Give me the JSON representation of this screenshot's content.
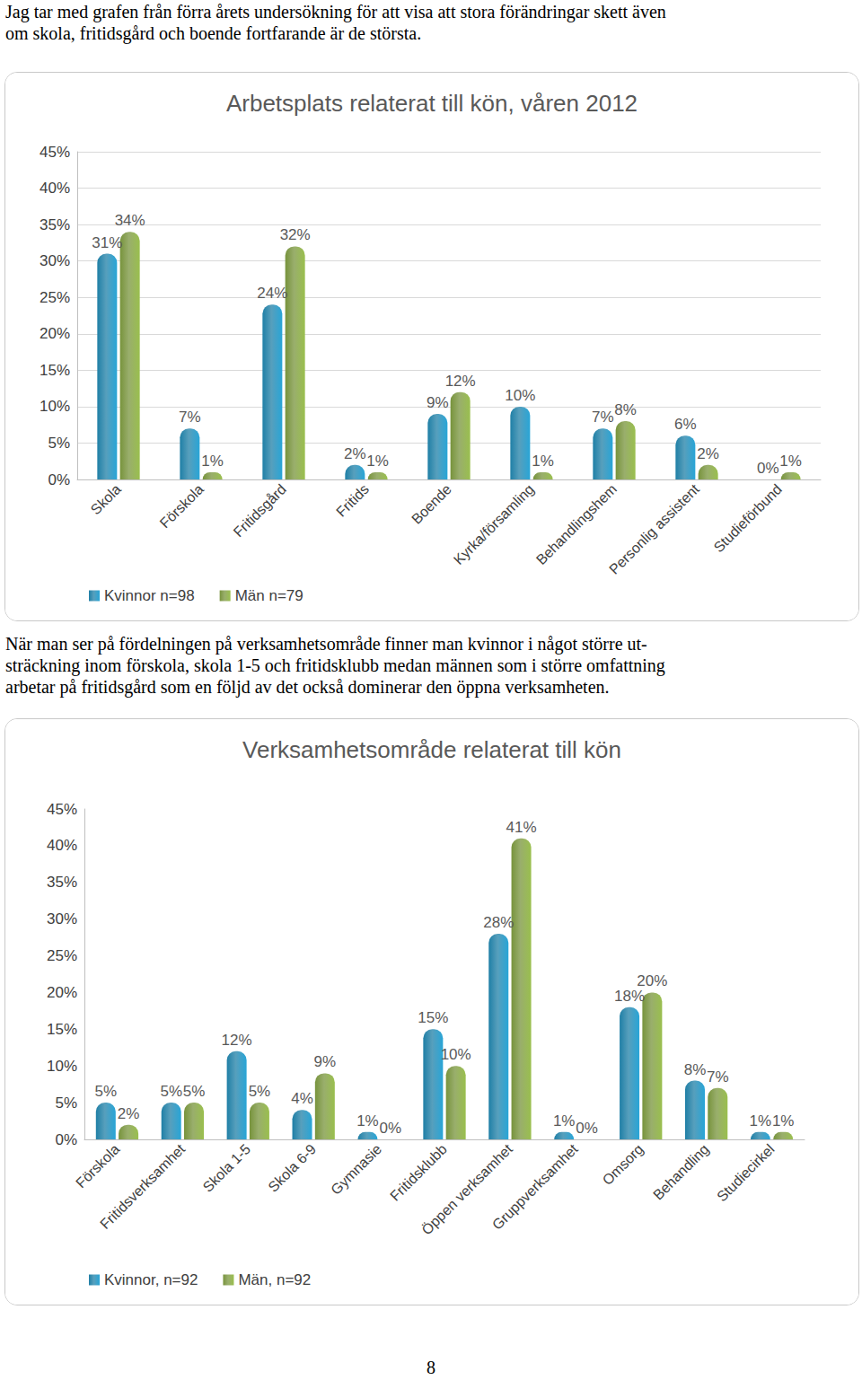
{
  "document": {
    "intro_lines": [
      "Jag tar med grafen från förra årets undersökning för att visa att stora förändringar skett även",
      "om skola, fritidsgård och boende fortfarande är de största."
    ],
    "paragraph_lines": [
      "När man ser på fördelningen på verksamhetsområde finner man kvinnor i något större ut-",
      "sträckning inom förskola, skola 1-5 och fritidsklubb medan männen som i större omfattning",
      "arbetar på fritidsgård som en följd av det också dominerar den öppna verksamheten."
    ],
    "page_number": "8"
  },
  "chart_data": [
    {
      "type": "bar",
      "title": "Arbetsplats relaterat till kön, våren 2012",
      "categories": [
        "Skola",
        "Förskola",
        "Fritidsgård",
        "Fritids",
        "Boende",
        "Kyrka/församling",
        "Behandlingshem",
        "Personlig assistent",
        "Studieförbund"
      ],
      "series": [
        {
          "name": "Kvinnor n=98",
          "color": "#1f7fa6",
          "values": [
            31,
            7,
            24,
            2,
            9,
            10,
            7,
            6,
            0
          ],
          "value_labels": [
            "31%",
            "7%",
            "24%",
            "2%",
            "9%",
            "10%",
            "7%",
            "6%",
            "0%"
          ]
        },
        {
          "name": "Män n=79",
          "color": "#77933c",
          "values": [
            34,
            1,
            32,
            1,
            12,
            1,
            8,
            2,
            1
          ],
          "value_labels": [
            "34%",
            "1%",
            "32%",
            "1%",
            "12%",
            "1%",
            "8%",
            "2%",
            "1%"
          ]
        }
      ],
      "ylim": [
        0,
        45
      ],
      "yticks": [
        {
          "value": 0,
          "label": "0%"
        },
        {
          "value": 5,
          "label": "5%"
        },
        {
          "value": 10,
          "label": "10%"
        },
        {
          "value": 15,
          "label": "15%"
        },
        {
          "value": 20,
          "label": "20%"
        },
        {
          "value": 25,
          "label": "25%"
        },
        {
          "value": 30,
          "label": "30%"
        },
        {
          "value": 35,
          "label": "35%"
        },
        {
          "value": 40,
          "label": "40%"
        },
        {
          "value": 45,
          "label": "45%"
        }
      ],
      "grid": true,
      "legend": "bottom-left",
      "data_labels": true
    },
    {
      "type": "bar",
      "title": "Verksamhetsområde relaterat till kön",
      "categories": [
        "Förskola",
        "Fritidsverksamhet",
        "Skola 1-5",
        "Skola 6-9",
        "Gymnasie",
        "Fritidsklubb",
        "Öppen verksamhet",
        "Gruppverksamhet",
        "Omsorg",
        "Behandling",
        "Studiecirkel"
      ],
      "series": [
        {
          "name": "Kvinnor, n=92",
          "color": "#1f7fa6",
          "values": [
            5,
            5,
            12,
            4,
            1,
            15,
            28,
            1,
            18,
            8,
            1
          ],
          "value_labels": [
            "5%",
            "5%",
            "12%",
            "4%",
            "1%",
            "15%",
            "28%",
            "1%",
            "18%",
            "8%",
            "1%"
          ]
        },
        {
          "name": "Män, n=92",
          "color": "#77933c",
          "values": [
            2,
            5,
            5,
            9,
            0,
            10,
            41,
            0,
            20,
            7,
            1
          ],
          "value_labels": [
            "2%",
            "5%",
            "5%",
            "9%",
            "0%",
            "10%",
            "41%",
            "0%",
            "20%",
            "7%",
            "1%"
          ]
        }
      ],
      "ylim": [
        0,
        45
      ],
      "yticks": [
        {
          "value": 0,
          "label": "0%"
        },
        {
          "value": 5,
          "label": "5%"
        },
        {
          "value": 10,
          "label": "10%"
        },
        {
          "value": 15,
          "label": "15%"
        },
        {
          "value": 20,
          "label": "20%"
        },
        {
          "value": 25,
          "label": "25%"
        },
        {
          "value": 30,
          "label": "30%"
        },
        {
          "value": 35,
          "label": "35%"
        },
        {
          "value": 40,
          "label": "40%"
        },
        {
          "value": 45,
          "label": "45%"
        }
      ],
      "grid": false,
      "legend": "bottom-left",
      "data_labels": true
    }
  ]
}
